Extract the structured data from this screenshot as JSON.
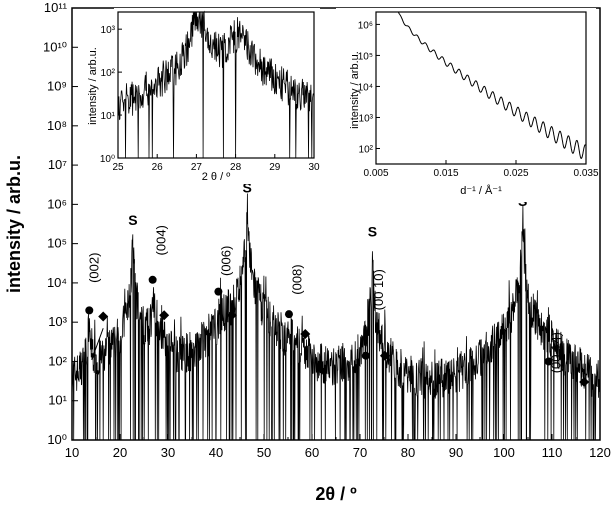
{
  "chart_data": {
    "type": "line",
    "main": {
      "xlabel": "2θ / º",
      "ylabel": "intensity / arb.u.",
      "xlim": [
        10,
        120
      ],
      "ylim_log10": [
        0,
        11
      ],
      "xticks": [
        "10",
        "20",
        "30",
        "40",
        "50",
        "60",
        "70",
        "80",
        "90",
        "100",
        "110",
        "120"
      ],
      "yticks": [
        "10⁰",
        "10¹",
        "10²",
        "10³",
        "10⁴",
        "10⁵",
        "10⁶",
        "10⁷",
        "10⁸",
        "10⁹",
        "10¹⁰",
        "10¹¹"
      ],
      "peaks": [
        {
          "x": 13.5,
          "y": 500,
          "w": 0.3
        },
        {
          "x": 14.2,
          "y": 80,
          "w": 0.3
        },
        {
          "x": 22.7,
          "y": 150000,
          "w": 0.12
        },
        {
          "x": 27.0,
          "y": 2000,
          "w": 0.4
        },
        {
          "x": 28.0,
          "y": 800,
          "w": 0.6
        },
        {
          "x": 41.1,
          "y": 1000,
          "w": 0.4
        },
        {
          "x": 42.8,
          "y": 300,
          "w": 0.6
        },
        {
          "x": 46.5,
          "y": 1000000,
          "w": 0.12
        },
        {
          "x": 55.8,
          "y": 300,
          "w": 0.4
        },
        {
          "x": 58.0,
          "y": 100,
          "w": 0.6
        },
        {
          "x": 71.5,
          "y": 40,
          "w": 0.4
        },
        {
          "x": 72.6,
          "y": 60000,
          "w": 0.1
        },
        {
          "x": 74.6,
          "y": 20,
          "w": 0.6
        },
        {
          "x": 103.9,
          "y": 400000,
          "w": 0.12
        },
        {
          "x": 109.8,
          "y": 30,
          "w": 0.5
        },
        {
          "x": 116.3,
          "y": 15,
          "w": 0.9
        }
      ],
      "miller_labels": [
        {
          "text": "(002)",
          "x": 15.5,
          "y": 10000
        },
        {
          "text": "(004)",
          "x": 29.5,
          "y": 50000
        },
        {
          "text": "(006)",
          "x": 43.0,
          "y": 15000
        },
        {
          "text": "(008)",
          "x": 57.8,
          "y": 5000
        },
        {
          "text": "(00 10)",
          "x": 74.8,
          "y": 2000
        },
        {
          "text": "(00 14)",
          "x": 111.8,
          "y": 50
        }
      ],
      "s_labels": [
        {
          "text": "S",
          "x": 22.7,
          "y": 300000
        },
        {
          "text": "S",
          "x": 46.5,
          "y": 2000000
        },
        {
          "text": "S",
          "x": 72.6,
          "y": 150000
        },
        {
          "text": "S",
          "x": 103.9,
          "y": 900000
        }
      ],
      "circles": [
        {
          "x": 13.6,
          "y": 2000
        },
        {
          "x": 26.8,
          "y": 12000
        },
        {
          "x": 40.5,
          "y": 6000
        },
        {
          "x": 55.2,
          "y": 1600
        },
        {
          "x": 71.2,
          "y": 140
        },
        {
          "x": 109.3,
          "y": 100
        }
      ],
      "diamonds": [
        {
          "x": 16.5,
          "y": 1400
        },
        {
          "x": 29.2,
          "y": 1500
        },
        {
          "x": 43.3,
          "y": 1500
        },
        {
          "x": 58.6,
          "y": 500
        },
        {
          "x": 75.2,
          "y": 140
        },
        {
          "x": 116.7,
          "y": 30
        }
      ]
    },
    "inset_left": {
      "xlabel": "2 θ / º",
      "ylabel": "intensity / arb.u.",
      "xlim": [
        25,
        30
      ],
      "ylim_log10": [
        0,
        3.4
      ],
      "xticks": [
        "25",
        "26",
        "27",
        "28",
        "29",
        "30"
      ],
      "yticks": [
        "10⁰",
        "10¹",
        "10²",
        "10³"
      ],
      "peaks": [
        {
          "x": 27.05,
          "y": 2200,
          "w": 0.12
        },
        {
          "x": 27.45,
          "y": 120,
          "w": 0.08
        },
        {
          "x": 28.05,
          "y": 650,
          "w": 0.25
        }
      ]
    },
    "inset_right": {
      "xlabel": "d⁻¹ / Å⁻¹",
      "ylabel": "intensity / arb.u.",
      "xlim": [
        0.005,
        0.035
      ],
      "ylim_log10": [
        1.5,
        6.4
      ],
      "xticks": [
        "0.005",
        "0.015",
        "0.025",
        "0.035"
      ],
      "yticks": [
        "10²",
        "10³",
        "10⁴",
        "10⁵",
        "10⁶"
      ],
      "curve": {
        "x_start": 0.0082,
        "y_start": 2500000,
        "x_end": 0.035,
        "y_end": 70,
        "oscillation_period": 0.0012
      }
    }
  }
}
